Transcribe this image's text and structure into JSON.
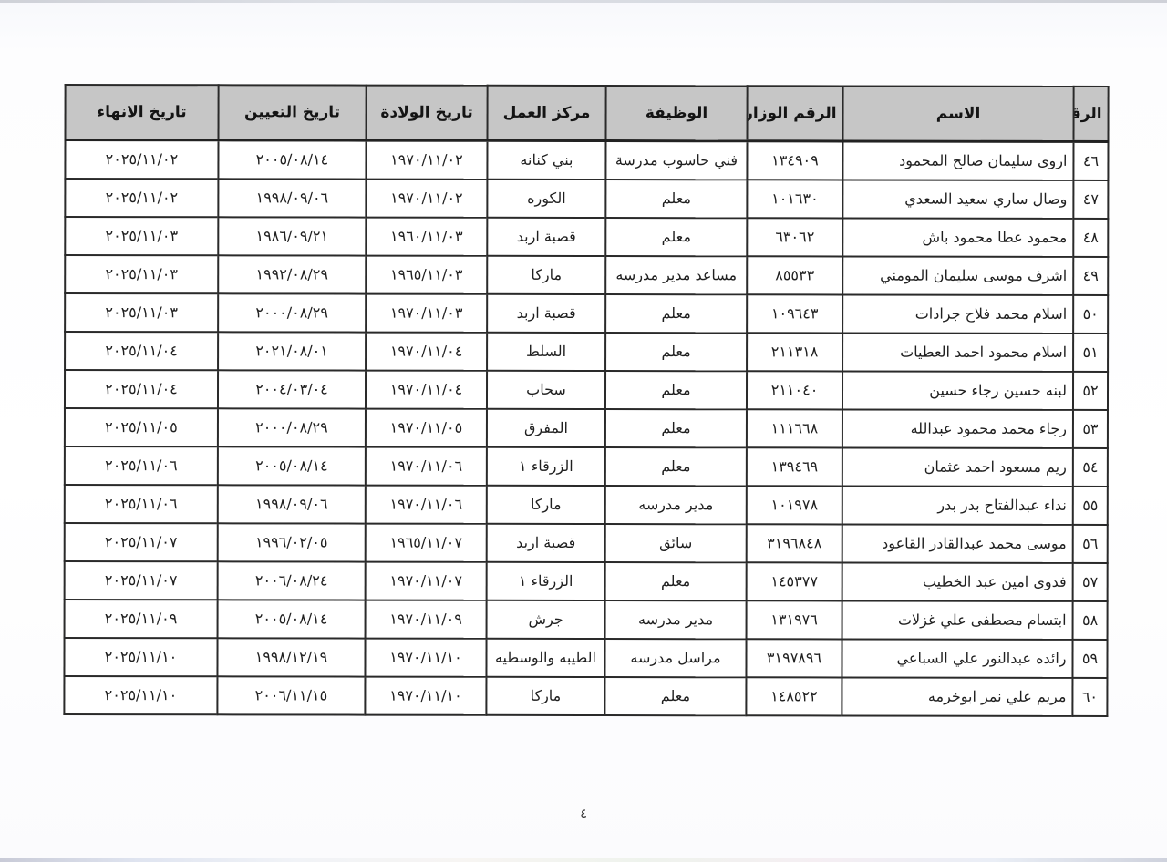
{
  "colors": {
    "header_bg": "#c6c6c6",
    "border": "#2a2a2a",
    "page_bg": "#ffffff"
  },
  "footer": {
    "page_number": "٤"
  },
  "table": {
    "headers": {
      "num": "الرقم",
      "name": "الاسم",
      "ministry_no": "الرقم الوزاري",
      "job": "الوظيفة",
      "work_center": "مركز العمل",
      "birth_date": "تاريخ الولادة",
      "hire_date": "تاريخ التعيين",
      "end_date": "تاريخ الانهاء"
    },
    "rows": [
      {
        "num": "٤٦",
        "name": "اروى سليمان صالح المحمود",
        "ministry_no": "١٣٤٩٠٩",
        "job": "فني حاسوب مدرسة",
        "work_center": "بني كنانه",
        "birth_date": "١٩٧٠/١١/٠٢",
        "hire_date": "٢٠٠٥/٠٨/١٤",
        "end_date": "٢٠٢٥/١١/٠٢"
      },
      {
        "num": "٤٧",
        "name": "وصال ساري سعيد السعدي",
        "ministry_no": "١٠١٦٣٠",
        "job": "معلم",
        "work_center": "الكوره",
        "birth_date": "١٩٧٠/١١/٠٢",
        "hire_date": "١٩٩٨/٠٩/٠٦",
        "end_date": "٢٠٢٥/١١/٠٢"
      },
      {
        "num": "٤٨",
        "name": "محمود عطا محمود باش",
        "ministry_no": "٦٣٠٦٢",
        "job": "معلم",
        "work_center": "قصبة اربد",
        "birth_date": "١٩٦٠/١١/٠٣",
        "hire_date": "١٩٨٦/٠٩/٢١",
        "end_date": "٢٠٢٥/١١/٠٣"
      },
      {
        "num": "٤٩",
        "name": "اشرف موسى سليمان المومني",
        "ministry_no": "٨٥٥٣٣",
        "job": "مساعد مدير مدرسه",
        "work_center": "ماركا",
        "birth_date": "١٩٦٥/١١/٠٣",
        "hire_date": "١٩٩٢/٠٨/٢٩",
        "end_date": "٢٠٢٥/١١/٠٣"
      },
      {
        "num": "٥٠",
        "name": "اسلام محمد فلاح جرادات",
        "ministry_no": "١٠٩٦٤٣",
        "job": "معلم",
        "work_center": "قصبة اربد",
        "birth_date": "١٩٧٠/١١/٠٣",
        "hire_date": "٢٠٠٠/٠٨/٢٩",
        "end_date": "٢٠٢٥/١١/٠٣"
      },
      {
        "num": "٥١",
        "name": "اسلام محمود احمد العطيات",
        "ministry_no": "٢١١٣١٨",
        "job": "معلم",
        "work_center": "السلط",
        "birth_date": "١٩٧٠/١١/٠٤",
        "hire_date": "٢٠٢١/٠٨/٠١",
        "end_date": "٢٠٢٥/١١/٠٤"
      },
      {
        "num": "٥٢",
        "name": "لبنه حسين رجاء حسين",
        "ministry_no": "٢١١٠٤٠",
        "job": "معلم",
        "work_center": "سحاب",
        "birth_date": "١٩٧٠/١١/٠٤",
        "hire_date": "٢٠٠٤/٠٣/٠٤",
        "end_date": "٢٠٢٥/١١/٠٤"
      },
      {
        "num": "٥٣",
        "name": "رجاء محمد محمود عبدالله",
        "ministry_no": "١١١٦٦٨",
        "job": "معلم",
        "work_center": "المفرق",
        "birth_date": "١٩٧٠/١١/٠٥",
        "hire_date": "٢٠٠٠/٠٨/٢٩",
        "end_date": "٢٠٢٥/١١/٠٥"
      },
      {
        "num": "٥٤",
        "name": "ريم مسعود احمد عثمان",
        "ministry_no": "١٣٩٤٦٩",
        "job": "معلم",
        "work_center": "الزرقاء ١",
        "birth_date": "١٩٧٠/١١/٠٦",
        "hire_date": "٢٠٠٥/٠٨/١٤",
        "end_date": "٢٠٢٥/١١/٠٦"
      },
      {
        "num": "٥٥",
        "name": "نداء عبدالفتاح بدر بدر",
        "ministry_no": "١٠١٩٧٨",
        "job": "مدير مدرسه",
        "work_center": "ماركا",
        "birth_date": "١٩٧٠/١١/٠٦",
        "hire_date": "١٩٩٨/٠٩/٠٦",
        "end_date": "٢٠٢٥/١١/٠٦"
      },
      {
        "num": "٥٦",
        "name": "موسى محمد عبدالقادر القاعود",
        "ministry_no": "٣١٩٦٨٤٨",
        "job": "سائق",
        "work_center": "قصبة اربد",
        "birth_date": "١٩٦٥/١١/٠٧",
        "hire_date": "١٩٩٦/٠٢/٠٥",
        "end_date": "٢٠٢٥/١١/٠٧"
      },
      {
        "num": "٥٧",
        "name": "فدوى امين عبد الخطيب",
        "ministry_no": "١٤٥٣٧٧",
        "job": "معلم",
        "work_center": "الزرقاء ١",
        "birth_date": "١٩٧٠/١١/٠٧",
        "hire_date": "٢٠٠٦/٠٨/٢٤",
        "end_date": "٢٠٢٥/١١/٠٧"
      },
      {
        "num": "٥٨",
        "name": "ابتسام مصطفى علي غزلات",
        "ministry_no": "١٣١٩٧٦",
        "job": "مدير مدرسه",
        "work_center": "جرش",
        "birth_date": "١٩٧٠/١١/٠٩",
        "hire_date": "٢٠٠٥/٠٨/١٤",
        "end_date": "٢٠٢٥/١١/٠٩"
      },
      {
        "num": "٥٩",
        "name": "رائده عبدالنور علي السباعي",
        "ministry_no": "٣١٩٧٨٩٦",
        "job": "مراسل مدرسه",
        "work_center": "الطيبه والوسطيه",
        "birth_date": "١٩٧٠/١١/١٠",
        "hire_date": "١٩٩٨/١٢/١٩",
        "end_date": "٢٠٢٥/١١/١٠"
      },
      {
        "num": "٦٠",
        "name": "مريم علي نمر ابوخرمه",
        "ministry_no": "١٤٨٥٢٢",
        "job": "معلم",
        "work_center": "ماركا",
        "birth_date": "١٩٧٠/١١/١٠",
        "hire_date": "٢٠٠٦/١١/١٥",
        "end_date": "٢٠٢٥/١١/١٠"
      }
    ]
  }
}
